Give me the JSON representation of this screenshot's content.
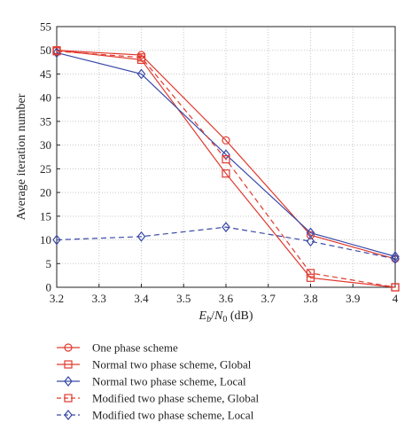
{
  "chart_data": {
    "type": "line",
    "xlabel_main": "E",
    "xlabel_sub_b": "b",
    "xlabel_slash": "/",
    "xlabel_n": "N",
    "xlabel_sub_0": "0",
    "xlabel_unit": " (dB)",
    "ylabel": "Average iteration number",
    "xlim": [
      3.2,
      4.0
    ],
    "ylim": [
      0,
      55
    ],
    "x_ticks": [
      "3.2",
      "3.3",
      "3.4",
      "3.5",
      "3.6",
      "3.7",
      "3.8",
      "3.9",
      "4"
    ],
    "y_ticks": [
      "0",
      "5",
      "10",
      "15",
      "20",
      "25",
      "30",
      "35",
      "40",
      "45",
      "50",
      "55"
    ],
    "grid": true,
    "legend_position": "bottom",
    "x": [
      3.2,
      3.4,
      3.6,
      3.8,
      4.0
    ],
    "series": [
      {
        "name": "One phase scheme",
        "color": "#e03a2f",
        "line": "solid",
        "marker": "circle",
        "values": [
          50,
          49,
          31,
          11,
          6
        ]
      },
      {
        "name": "Normal two phase scheme, Global",
        "color": "#e03a2f",
        "line": "solid",
        "marker": "square",
        "values": [
          50,
          48,
          24,
          2,
          0
        ]
      },
      {
        "name": "Normal two phase scheme, Local",
        "color": "#3a4aa8",
        "line": "solid",
        "marker": "diamond",
        "values": [
          49.5,
          45,
          28,
          11.5,
          6.5
        ]
      },
      {
        "name": "Modified two phase scheme, Global",
        "color": "#e03a2f",
        "line": "dashed",
        "marker": "square",
        "values": [
          49.8,
          48.5,
          27,
          3,
          0
        ]
      },
      {
        "name": "Modified two phase scheme, Local",
        "color": "#3a4aa8",
        "line": "dashed",
        "marker": "diamond",
        "values": [
          10,
          10.7,
          12.7,
          9.7,
          6
        ]
      }
    ]
  }
}
